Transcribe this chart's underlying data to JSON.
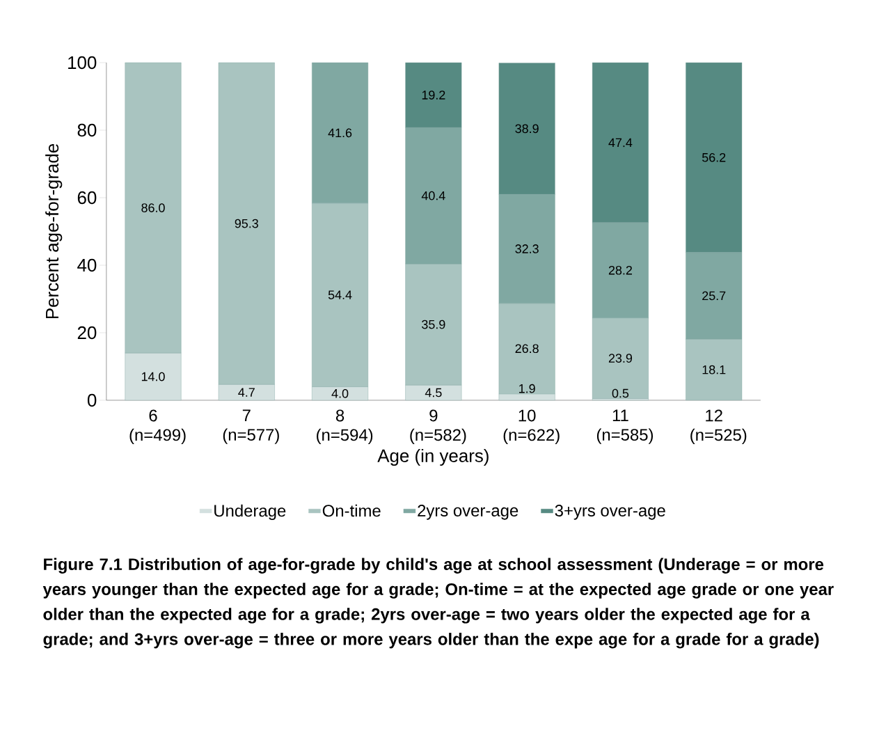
{
  "chart_data": {
    "type": "bar",
    "stacked": true,
    "title": "Figure 7.1 Distribution of age-for-grade by child's age at school assessment (Underage = or more years younger than the expected age for a grade; On-time =  at the expected age grade or one year older than the expected age for a grade; 2yrs over-age = two years older the expected age for a grade; and 3+yrs over-age = three or more years older than the expe age for a grade  for a grade)",
    "xlabel": "Age (in years)",
    "ylabel": "Percent age-for-grade",
    "categories": [
      "6 (n=499)",
      "7 (n=577)",
      "8 (n=594)",
      "9 (n=582)",
      "10 (n=622)",
      "11 (n=585)",
      "12 (n=525)"
    ],
    "ylim": [
      0,
      100
    ],
    "yticks": [
      0,
      20,
      40,
      60,
      80,
      100
    ],
    "grid": false,
    "legend": "bottom",
    "series": [
      {
        "name": "Underage",
        "color": "#d3e0df",
        "values": [
          14.0,
          4.7,
          4.0,
          4.5,
          1.9,
          0.5,
          null
        ],
        "value_labels": [
          "14.0",
          "4.7",
          "4.0",
          "4.5",
          "1.9",
          "0.5",
          null
        ]
      },
      {
        "name": "On-time",
        "color": "#a9c4c0",
        "values": [
          86.0,
          95.3,
          54.4,
          35.9,
          26.8,
          23.9,
          18.1
        ],
        "value_labels": [
          "86.0",
          "95.3",
          "54.4",
          "35.9",
          "26.8",
          "23.9",
          "18.1"
        ]
      },
      {
        "name": "2yrs over-age",
        "color": "#80a8a2",
        "values": [
          null,
          null,
          41.6,
          40.4,
          32.3,
          28.2,
          25.7
        ],
        "value_labels": [
          null,
          null,
          "41.6",
          "40.4",
          "32.3",
          "28.2",
          "25.7"
        ]
      },
      {
        "name": "3+yrs over-age",
        "color": "#568a82",
        "values": [
          null,
          null,
          null,
          19.2,
          38.9,
          47.4,
          56.2
        ],
        "value_labels": [
          null,
          null,
          null,
          "19.2",
          "38.9",
          "47.4",
          "56.2"
        ]
      }
    ]
  }
}
